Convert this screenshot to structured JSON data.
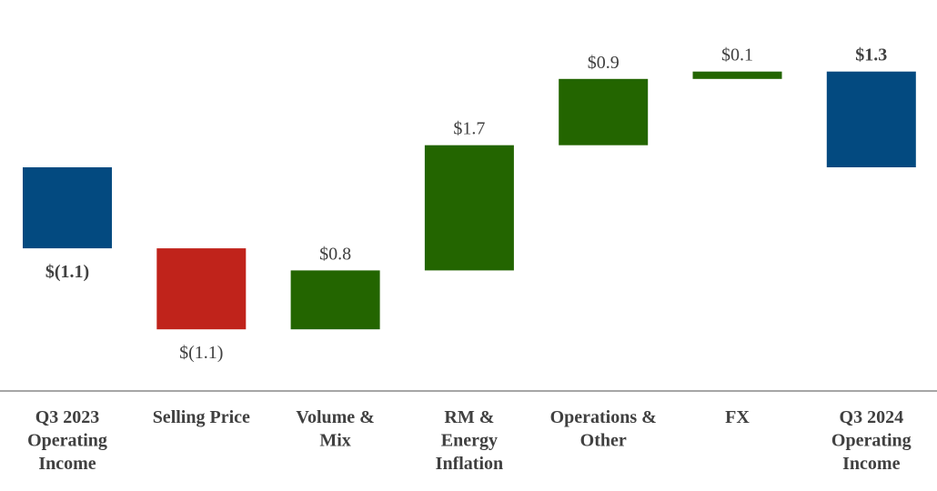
{
  "chart_data": {
    "type": "bar",
    "subtype": "waterfall",
    "categories": [
      [
        "Q3 2023",
        "Operating",
        "Income"
      ],
      [
        "Selling Price"
      ],
      [
        "Volume &",
        "Mix"
      ],
      [
        "RM &",
        "Energy",
        "Inflation"
      ],
      [
        "Operations &",
        "Other"
      ],
      [
        "FX"
      ],
      [
        "Q3 2024",
        "Operating",
        "Income"
      ]
    ],
    "bars": [
      {
        "kind": "total",
        "start": 0,
        "end": -1.1,
        "label": "$(1.1)",
        "bold": true
      },
      {
        "kind": "change",
        "start": -1.1,
        "end": -2.2,
        "label": "$(1.1)",
        "bold": false
      },
      {
        "kind": "change",
        "start": -2.2,
        "end": -1.4,
        "label": "$0.8",
        "bold": false
      },
      {
        "kind": "change",
        "start": -1.4,
        "end": 0.3,
        "label": "$1.7",
        "bold": false
      },
      {
        "kind": "change",
        "start": 0.3,
        "end": 1.2,
        "label": "$0.9",
        "bold": false
      },
      {
        "kind": "change",
        "start": 1.2,
        "end": 1.3,
        "label": "$0.1",
        "bold": false
      },
      {
        "kind": "total",
        "start": 0,
        "end": 1.3,
        "label": "$1.3",
        "bold": true
      }
    ],
    "colors": {
      "total": "#034a80",
      "decrease": "#c0231b",
      "increase": "#236500",
      "axis": "#a6a6a6",
      "text": "#404040"
    }
  }
}
